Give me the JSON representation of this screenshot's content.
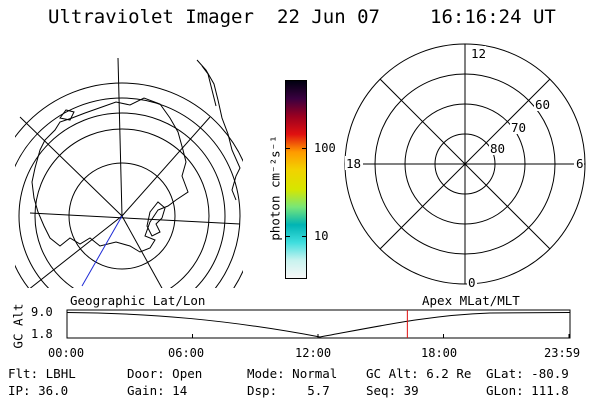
{
  "header": {
    "title": "Ultraviolet Imager",
    "date": "22 Jun 07",
    "time": "16:16:24 UT"
  },
  "colors": {
    "background": "#ffffff",
    "lines": "#000000",
    "track": "#1f2bd6",
    "marker": "#e01010"
  },
  "colorbar": {
    "label": "photon cm⁻²s⁻¹",
    "ticks": [
      "100",
      "10"
    ],
    "palette": [
      "#f7f7f7",
      "#c8f3ef",
      "#3fdede",
      "#00b4b4",
      "#78e678",
      "#d6e600",
      "#f2d200",
      "#ff9a00",
      "#e01010",
      "#9b0020",
      "#3a0040",
      "#000010"
    ]
  },
  "polar_plot": {
    "mlt_labels": {
      "top": "12",
      "left": "18",
      "right": "6",
      "bottom": "0"
    },
    "lat_labels": [
      "60",
      "70",
      "80"
    ]
  },
  "orbit": {
    "left_title": "Geographic Lat/Lon",
    "right_title": "Apex MLat/MLT",
    "axis_label": "GC Alt",
    "y_top": "9.0",
    "y_bottom": "1.8",
    "x_ticks": [
      "00:00",
      "06:00",
      "12:00",
      "18:00",
      "23:59"
    ],
    "marker_time_fraction": 0.678
  },
  "info": {
    "row1": [
      {
        "label": "Flt:",
        "value": "LBHL"
      },
      {
        "label": "Door:",
        "value": "Open"
      },
      {
        "label": "Mode:",
        "value": "Normal"
      },
      {
        "label": "GC Alt:",
        "value": "6.2 Re"
      },
      {
        "label": "GLat:",
        "value": "-80.9"
      }
    ],
    "row2": [
      {
        "label": "IP:",
        "value": "36.0"
      },
      {
        "label": "Gain:",
        "value": "14"
      },
      {
        "label": "Dsp:",
        "value": "5.7"
      },
      {
        "label": "Seq:",
        "value": "39"
      },
      {
        "label": "GLon:",
        "value": "111.8"
      }
    ]
  }
}
